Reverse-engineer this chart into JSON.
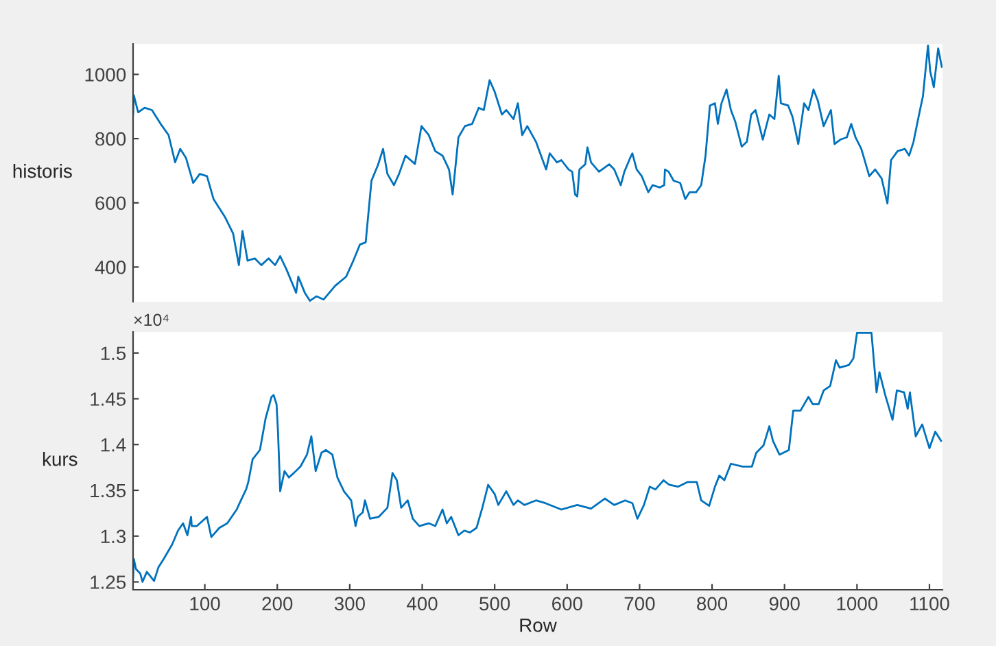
{
  "chart_data": [
    {
      "type": "line",
      "ylabel": "historis",
      "xlim": [
        1,
        1118
      ],
      "ylim": [
        292,
        1095
      ],
      "yticks": [
        400,
        600,
        800,
        1000
      ],
      "tick_labels": "y",
      "series": [
        {
          "color": "#0072bd",
          "x": [
            1,
            2,
            8,
            17,
            27,
            39,
            50,
            59,
            66,
            74,
            84,
            93,
            103,
            112,
            128,
            139,
            147,
            152,
            159,
            169,
            178,
            188,
            197,
            204,
            213,
            226,
            229,
            238,
            245,
            254,
            264,
            280,
            295,
            305,
            314,
            322,
            330,
            339,
            346,
            352,
            361,
            368,
            377,
            390,
            399,
            409,
            418,
            428,
            437,
            442,
            450,
            459,
            469,
            478,
            485,
            493,
            500,
            510,
            516,
            526,
            532,
            538,
            545,
            557,
            564,
            571,
            576,
            586,
            592,
            602,
            607,
            611,
            614,
            617,
            625,
            628,
            633,
            644,
            658,
            665,
            674,
            679,
            687,
            690,
            696,
            703,
            712,
            718,
            728,
            734,
            735,
            740,
            747,
            756,
            763,
            769,
            778,
            785,
            791,
            797,
            804,
            808,
            813,
            820,
            826,
            832,
            841,
            848,
            854,
            860,
            870,
            879,
            886,
            892,
            895,
            905,
            911,
            919,
            927,
            933,
            940,
            946,
            954,
            964,
            969,
            977,
            986,
            992,
            998,
            1006,
            1017,
            1025,
            1034,
            1042,
            1047,
            1056,
            1066,
            1072,
            1078,
            1085,
            1091,
            1098,
            1101,
            1106,
            1112,
            1117
          ],
          "values": [
            875,
            935,
            882,
            896,
            889,
            846,
            811,
            726,
            768,
            740,
            662,
            690,
            683,
            612,
            555,
            505,
            406,
            512,
            420,
            427,
            406,
            427,
            406,
            434,
            391,
            320,
            370,
            320,
            295,
            309,
            299,
            342,
            370,
            420,
            470,
            477,
            669,
            718,
            768,
            690,
            655,
            690,
            747,
            721,
            839,
            811,
            761,
            747,
            704,
            626,
            804,
            839,
            846,
            896,
            889,
            982,
            946,
            875,
            889,
            861,
            910,
            811,
            839,
            790,
            747,
            704,
            754,
            726,
            733,
            704,
            697,
            626,
            620,
            704,
            720,
            773,
            726,
            697,
            720,
            704,
            655,
            697,
            740,
            754,
            704,
            683,
            633,
            655,
            648,
            655,
            704,
            697,
            669,
            662,
            612,
            633,
            633,
            655,
            747,
            903,
            910,
            846,
            910,
            953,
            889,
            853,
            775,
            790,
            875,
            889,
            797,
            875,
            861,
            996,
            910,
            903,
            868,
            783,
            910,
            889,
            953,
            918,
            839,
            889,
            783,
            797,
            804,
            846,
            804,
            768,
            683,
            704,
            676,
            598,
            733,
            761,
            768,
            747,
            790,
            868,
            932,
            1090,
            1010,
            960,
            1081,
            1024
          ]
        }
      ]
    },
    {
      "type": "line",
      "ylabel": "kurs",
      "xlabel": "Row",
      "xlim": [
        1,
        1118
      ],
      "xticks": [
        100,
        200,
        300,
        400,
        500,
        600,
        700,
        800,
        900,
        1000,
        1100
      ],
      "ylim": [
        1.2414,
        1.523
      ],
      "yticks": [
        1.25,
        1.3,
        1.35,
        1.4,
        1.45,
        1.5
      ],
      "annotations": [
        "×10⁴"
      ],
      "series": [
        {
          "color": "#0072bd",
          "x": [
            1,
            2,
            5,
            11,
            14,
            20,
            30,
            36,
            44,
            55,
            63,
            70,
            76,
            81,
            82,
            89,
            103,
            109,
            120,
            131,
            144,
            148,
            157,
            160,
            166,
            176,
            184,
            192,
            195,
            199,
            201,
            204,
            210,
            216,
            223,
            232,
            241,
            247,
            253,
            261,
            267,
            276,
            283,
            292,
            302,
            308,
            311,
            318,
            321,
            328,
            340,
            352,
            359,
            365,
            371,
            380,
            387,
            396,
            409,
            418,
            428,
            434,
            440,
            450,
            458,
            466,
            475,
            483,
            491,
            500,
            505,
            516,
            526,
            532,
            541,
            557,
            570,
            592,
            614,
            633,
            652,
            665,
            680,
            690,
            697,
            706,
            714,
            722,
            733,
            741,
            753,
            766,
            779,
            785,
            796,
            804,
            810,
            817,
            826,
            842,
            855,
            861,
            871,
            879,
            884,
            893,
            906,
            912,
            922,
            933,
            939,
            947,
            954,
            963,
            971,
            976,
            989,
            995,
            1000,
            1014,
            1020,
            1027,
            1031,
            1039,
            1049,
            1055,
            1065,
            1070,
            1073,
            1081,
            1090,
            1100,
            1108,
            1116
          ],
          "values": [
            1.254,
            1.275,
            1.264,
            1.259,
            1.25,
            1.261,
            1.251,
            1.266,
            1.276,
            1.291,
            1.306,
            1.314,
            1.301,
            1.321,
            1.311,
            1.311,
            1.321,
            1.299,
            1.309,
            1.314,
            1.329,
            1.336,
            1.351,
            1.359,
            1.384,
            1.394,
            1.429,
            1.452,
            1.454,
            1.444,
            1.414,
            1.349,
            1.371,
            1.364,
            1.369,
            1.376,
            1.389,
            1.409,
            1.371,
            1.391,
            1.394,
            1.389,
            1.364,
            1.349,
            1.339,
            1.311,
            1.321,
            1.326,
            1.339,
            1.319,
            1.321,
            1.331,
            1.369,
            1.361,
            1.331,
            1.339,
            1.319,
            1.311,
            1.314,
            1.311,
            1.329,
            1.314,
            1.321,
            1.301,
            1.306,
            1.304,
            1.309,
            1.331,
            1.356,
            1.346,
            1.334,
            1.349,
            1.334,
            1.339,
            1.334,
            1.339,
            1.336,
            1.329,
            1.334,
            1.33,
            1.341,
            1.334,
            1.339,
            1.336,
            1.319,
            1.334,
            1.354,
            1.351,
            1.361,
            1.356,
            1.354,
            1.359,
            1.359,
            1.339,
            1.333,
            1.354,
            1.366,
            1.361,
            1.379,
            1.376,
            1.376,
            1.391,
            1.399,
            1.42,
            1.404,
            1.389,
            1.394,
            1.437,
            1.437,
            1.452,
            1.444,
            1.444,
            1.459,
            1.464,
            1.492,
            1.484,
            1.487,
            1.494,
            1.522,
            1.522,
            1.522,
            1.457,
            1.479,
            1.454,
            1.427,
            1.459,
            1.457,
            1.439,
            1.457,
            1.409,
            1.422,
            1.396,
            1.414,
            1.404
          ]
        }
      ]
    }
  ]
}
